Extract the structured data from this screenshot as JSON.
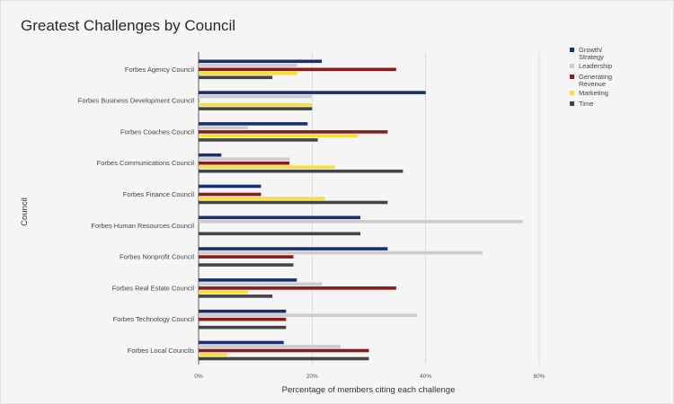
{
  "chart_data": {
    "type": "bar",
    "orientation": "horizontal",
    "title": "Greatest Challenges by Council",
    "xlabel": "Percentage of members citing each challenge",
    "ylabel": "Council",
    "xlim": [
      0,
      60
    ],
    "x_ticks": [
      "0%",
      "20%",
      "40%",
      "60%"
    ],
    "grid": true,
    "legend_position": "right",
    "categories": [
      "Forbes Agency Council",
      "Forbes Business Development Council",
      "Forbes Coaches Council",
      "Forbes Communications Council",
      "Forbes Finance Council",
      "Forbes Human Resources Council",
      "Forbes Nonprofit Council",
      "Forbes Real Estate Council",
      "Forbes Technology Council",
      "Forbes Local Councils"
    ],
    "series": [
      {
        "name": "Growth/ Strategy",
        "color": "#1c2e6e",
        "values": [
          21.7,
          40,
          19.2,
          4,
          11,
          28.5,
          33.3,
          17.3,
          15.4,
          15
        ]
      },
      {
        "name": "Leadership",
        "color": "#cccccc",
        "values": [
          17.4,
          20,
          8.7,
          16,
          0,
          57.1,
          50,
          21.7,
          38.5,
          25
        ]
      },
      {
        "name": "Generating Revenue",
        "color": "#8b1a1a",
        "values": [
          34.8,
          0,
          33.3,
          16,
          11,
          0,
          16.7,
          34.8,
          15.4,
          30
        ]
      },
      {
        "name": "Marketing",
        "color": "#f5e03a",
        "values": [
          17.4,
          20,
          28,
          24,
          22.2,
          0,
          0,
          8.7,
          0,
          5
        ]
      },
      {
        "name": "Time",
        "color": "#444444",
        "values": [
          13,
          20,
          21,
          36,
          33.3,
          28.5,
          16.7,
          13,
          15.4,
          30
        ]
      }
    ]
  }
}
